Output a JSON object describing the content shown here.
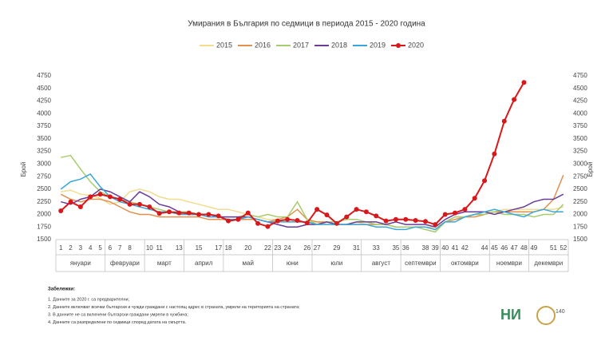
{
  "chart_data": {
    "type": "line",
    "title": "Умирания в България по седмици в периода 2015 - 2020 година",
    "y_label": "Брой",
    "y2_label": "Брой",
    "categories": [
      "1",
      "2",
      "3",
      "4",
      "5",
      "6",
      "7",
      "8",
      null,
      "10",
      "11",
      null,
      "13",
      null,
      "15",
      null,
      "17",
      "18",
      null,
      "20",
      null,
      "22",
      "23",
      "24",
      null,
      "26",
      "27",
      null,
      "29",
      null,
      "31",
      null,
      "33",
      null,
      "35",
      "36",
      null,
      "38",
      "39",
      "40",
      "41",
      "42",
      null,
      "44",
      "45",
      "46",
      "47",
      "48",
      "49",
      null,
      "51",
      "52"
    ],
    "months": [
      {
        "label": "януари",
        "start": 1,
        "end": 5
      },
      {
        "label": "февруари",
        "start": 6,
        "end": 9
      },
      {
        "label": "март",
        "start": 10,
        "end": 13
      },
      {
        "label": "април",
        "start": 14,
        "end": 17
      },
      {
        "label": "май",
        "start": 18,
        "end": 22
      },
      {
        "label": "юни",
        "start": 23,
        "end": 26
      },
      {
        "label": "юли",
        "start": 27,
        "end": 31
      },
      {
        "label": "август",
        "start": 32,
        "end": 35
      },
      {
        "label": "септември",
        "start": 36,
        "end": 39
      },
      {
        "label": "октомври",
        "start": 40,
        "end": 44
      },
      {
        "label": "ноември",
        "start": 45,
        "end": 48
      },
      {
        "label": "декември",
        "start": 49,
        "end": 52
      }
    ],
    "ylim": [
      1500,
      4750
    ],
    "yticks": [
      1500,
      1750,
      2000,
      2250,
      2500,
      2750,
      3000,
      3250,
      3500,
      3750,
      4000,
      4250,
      4500,
      4750
    ],
    "y2lim": [
      1500,
      4750
    ],
    "y2ticks": [
      1500,
      1750,
      2000,
      2250,
      2500,
      2750,
      3000,
      3250,
      3500,
      3750,
      4000,
      4250,
      4500,
      4750
    ],
    "grid": false,
    "legend": "top",
    "series": [
      {
        "name": "2015",
        "color": "#f2dc8e",
        "values": [
          2450,
          2480,
          2400,
          2380,
          2320,
          2200,
          2250,
          2450,
          2500,
          2450,
          2350,
          2300,
          2300,
          2250,
          2200,
          2150,
          2100,
          2100,
          2050,
          2000,
          1950,
          1900,
          1900,
          1850,
          1850,
          1850,
          1850,
          1800,
          1800,
          1800,
          1850,
          1800,
          1800,
          1800,
          1750,
          1750,
          1750,
          1750,
          1750,
          1850,
          1900,
          1950,
          2000,
          2050,
          2050,
          2100,
          2100,
          2100,
          2100,
          2100,
          2100,
          2150
        ]
      },
      {
        "name": "2016",
        "color": "#e0914f",
        "values": [
          2400,
          2300,
          2250,
          2300,
          2300,
          2250,
          2150,
          2050,
          2000,
          2000,
          1950,
          1950,
          1950,
          1950,
          1950,
          1900,
          1900,
          1900,
          1900,
          1900,
          1900,
          1850,
          1900,
          1950,
          2100,
          1900,
          1850,
          1850,
          1800,
          1800,
          1800,
          1800,
          1800,
          1800,
          1750,
          1750,
          1750,
          1750,
          1700,
          1850,
          1900,
          1950,
          1950,
          2000,
          2050,
          2050,
          2050,
          2050,
          2050,
          2100,
          2300,
          2780
        ]
      },
      {
        "name": "2017",
        "color": "#a6cc6e",
        "values": [
          3130,
          3170,
          2900,
          2650,
          2450,
          2350,
          2300,
          2250,
          2200,
          2150,
          2100,
          2050,
          2050,
          2050,
          2000,
          2000,
          1950,
          1950,
          1950,
          2000,
          1950,
          2000,
          1950,
          1950,
          2250,
          1900,
          1800,
          1850,
          1850,
          1900,
          1900,
          1850,
          1800,
          1800,
          1750,
          1750,
          1750,
          1700,
          1650,
          1850,
          1950,
          1950,
          2000,
          2000,
          2050,
          2000,
          2000,
          2000,
          1950,
          2000,
          2000,
          2200
        ]
      },
      {
        "name": "2018",
        "color": "#6a3d9a",
        "values": [
          2250,
          2200,
          2300,
          2350,
          2500,
          2450,
          2350,
          2250,
          2450,
          2350,
          2200,
          2150,
          2050,
          2000,
          2000,
          2000,
          1950,
          1950,
          1950,
          1950,
          1900,
          1850,
          1800,
          1750,
          1750,
          1800,
          1800,
          1850,
          1800,
          1800,
          1850,
          1850,
          1850,
          1800,
          1850,
          1800,
          1800,
          1800,
          1750,
          1900,
          2000,
          2050,
          2050,
          2050,
          2000,
          2050,
          2100,
          2150,
          2250,
          2300,
          2300,
          2400
        ]
      },
      {
        "name": "2019",
        "color": "#3ba6d9",
        "values": [
          2500,
          2650,
          2700,
          2800,
          2550,
          2350,
          2250,
          2200,
          2150,
          2100,
          2050,
          2050,
          2000,
          2000,
          2000,
          1950,
          1950,
          1900,
          1900,
          1950,
          1900,
          1850,
          1850,
          1850,
          1850,
          1850,
          1800,
          1800,
          1800,
          1800,
          1800,
          1800,
          1750,
          1750,
          1700,
          1700,
          1750,
          1750,
          1700,
          1850,
          1850,
          1950,
          2000,
          2050,
          2100,
          2050,
          2000,
          1950,
          2050,
          2100,
          2050,
          2050
        ]
      },
      {
        "name": "2020",
        "color": "#d7191c",
        "marker": "circle",
        "values": [
          2070,
          2250,
          2150,
          2350,
          2400,
          2350,
          2300,
          2200,
          2200,
          2150,
          2020,
          2050,
          2030,
          2030,
          2000,
          2000,
          1970,
          1870,
          1900,
          2030,
          1820,
          1760,
          1870,
          1900,
          1880,
          1830,
          2100,
          1990,
          1820,
          1950,
          2100,
          2050,
          1970,
          1870,
          1900,
          1900,
          1880,
          1860,
          1800,
          2000,
          2030,
          2100,
          2320,
          2670,
          3200,
          3850,
          4280,
          4620,
          null,
          null,
          null,
          null
        ]
      }
    ]
  },
  "notes": {
    "title": "Забележки:",
    "items": [
      "1. Данните за 2020 г. са предварителни;",
      "2. Данните включват всички български и чужди граждани с настоящ адрес в страната, умрели на територията на страната;",
      "3. В данните не са включени български граждани умрели в чужбина;",
      "4. Данните са разпределени по седмици според датата на смъртта."
    ]
  },
  "logo": {
    "mark": "НИ",
    "years": "140"
  }
}
